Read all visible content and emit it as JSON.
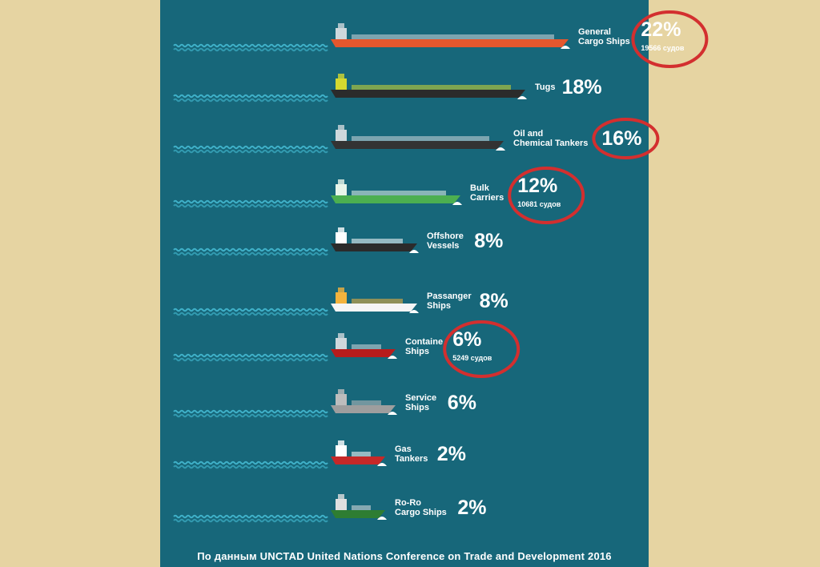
{
  "chart_data": {
    "type": "bar",
    "unit": "%",
    "categories": [
      {
        "label_lines": [
          "General",
          "Cargo Ships"
        ],
        "value": 22,
        "display": "22%",
        "note": "19566 судов",
        "circled": true,
        "hull": "#e4572e",
        "accent": "#cfd8dc"
      },
      {
        "label_lines": [
          "Tugs"
        ],
        "value": 18,
        "display": "18%",
        "note": "",
        "circled": false,
        "hull": "#2b2b2b",
        "accent": "#d4d930"
      },
      {
        "label_lines": [
          "Oil and",
          "Chemical Tankers"
        ],
        "value": 16,
        "display": "16%",
        "note": "",
        "circled": true,
        "hull": "#333333",
        "accent": "#cfd8dc"
      },
      {
        "label_lines": [
          "Bulk",
          "Carriers"
        ],
        "value": 12,
        "display": "12%",
        "note": "10681 судов",
        "circled": true,
        "hull": "#4caf50",
        "accent": "#e8f5e9"
      },
      {
        "label_lines": [
          "Offshore",
          "Vessels"
        ],
        "value": 8,
        "display": "8%",
        "note": "",
        "circled": false,
        "hull": "#2b2b2b",
        "accent": "#ffffff"
      },
      {
        "label_lines": [
          "Passanger",
          "Ships"
        ],
        "value": 8,
        "display": "8%",
        "note": "",
        "circled": false,
        "hull": "#f5f5f5",
        "accent": "#f3b33d"
      },
      {
        "label_lines": [
          "Containe",
          "Ships"
        ],
        "value": 6,
        "display": "6%",
        "note": "5249 судов",
        "circled": true,
        "hull": "#b71c1c",
        "accent": "#cfd8dc"
      },
      {
        "label_lines": [
          "Service",
          "Ships"
        ],
        "value": 6,
        "display": "6%",
        "note": "",
        "circled": false,
        "hull": "#9e9e9e",
        "accent": "#bdbdbd"
      },
      {
        "label_lines": [
          "Gas",
          "Tankers"
        ],
        "value": 2,
        "display": "2%",
        "note": "",
        "circled": false,
        "hull": "#c62828",
        "accent": "#ffffff"
      },
      {
        "label_lines": [
          "Ro-Ro",
          "Cargo Ships"
        ],
        "value": 2,
        "display": "2%",
        "note": "",
        "circled": false,
        "hull": "#2e7d32",
        "accent": "#e0e0e0"
      }
    ],
    "colors": {
      "background": "#17677a",
      "page": "#e6d4a2",
      "wave": "#3fb0c8",
      "circle": "#d32f2f",
      "text": "#ffffff"
    }
  },
  "footer": "По данным UNCTAD United Nations Conference on Trade and Development 2016"
}
